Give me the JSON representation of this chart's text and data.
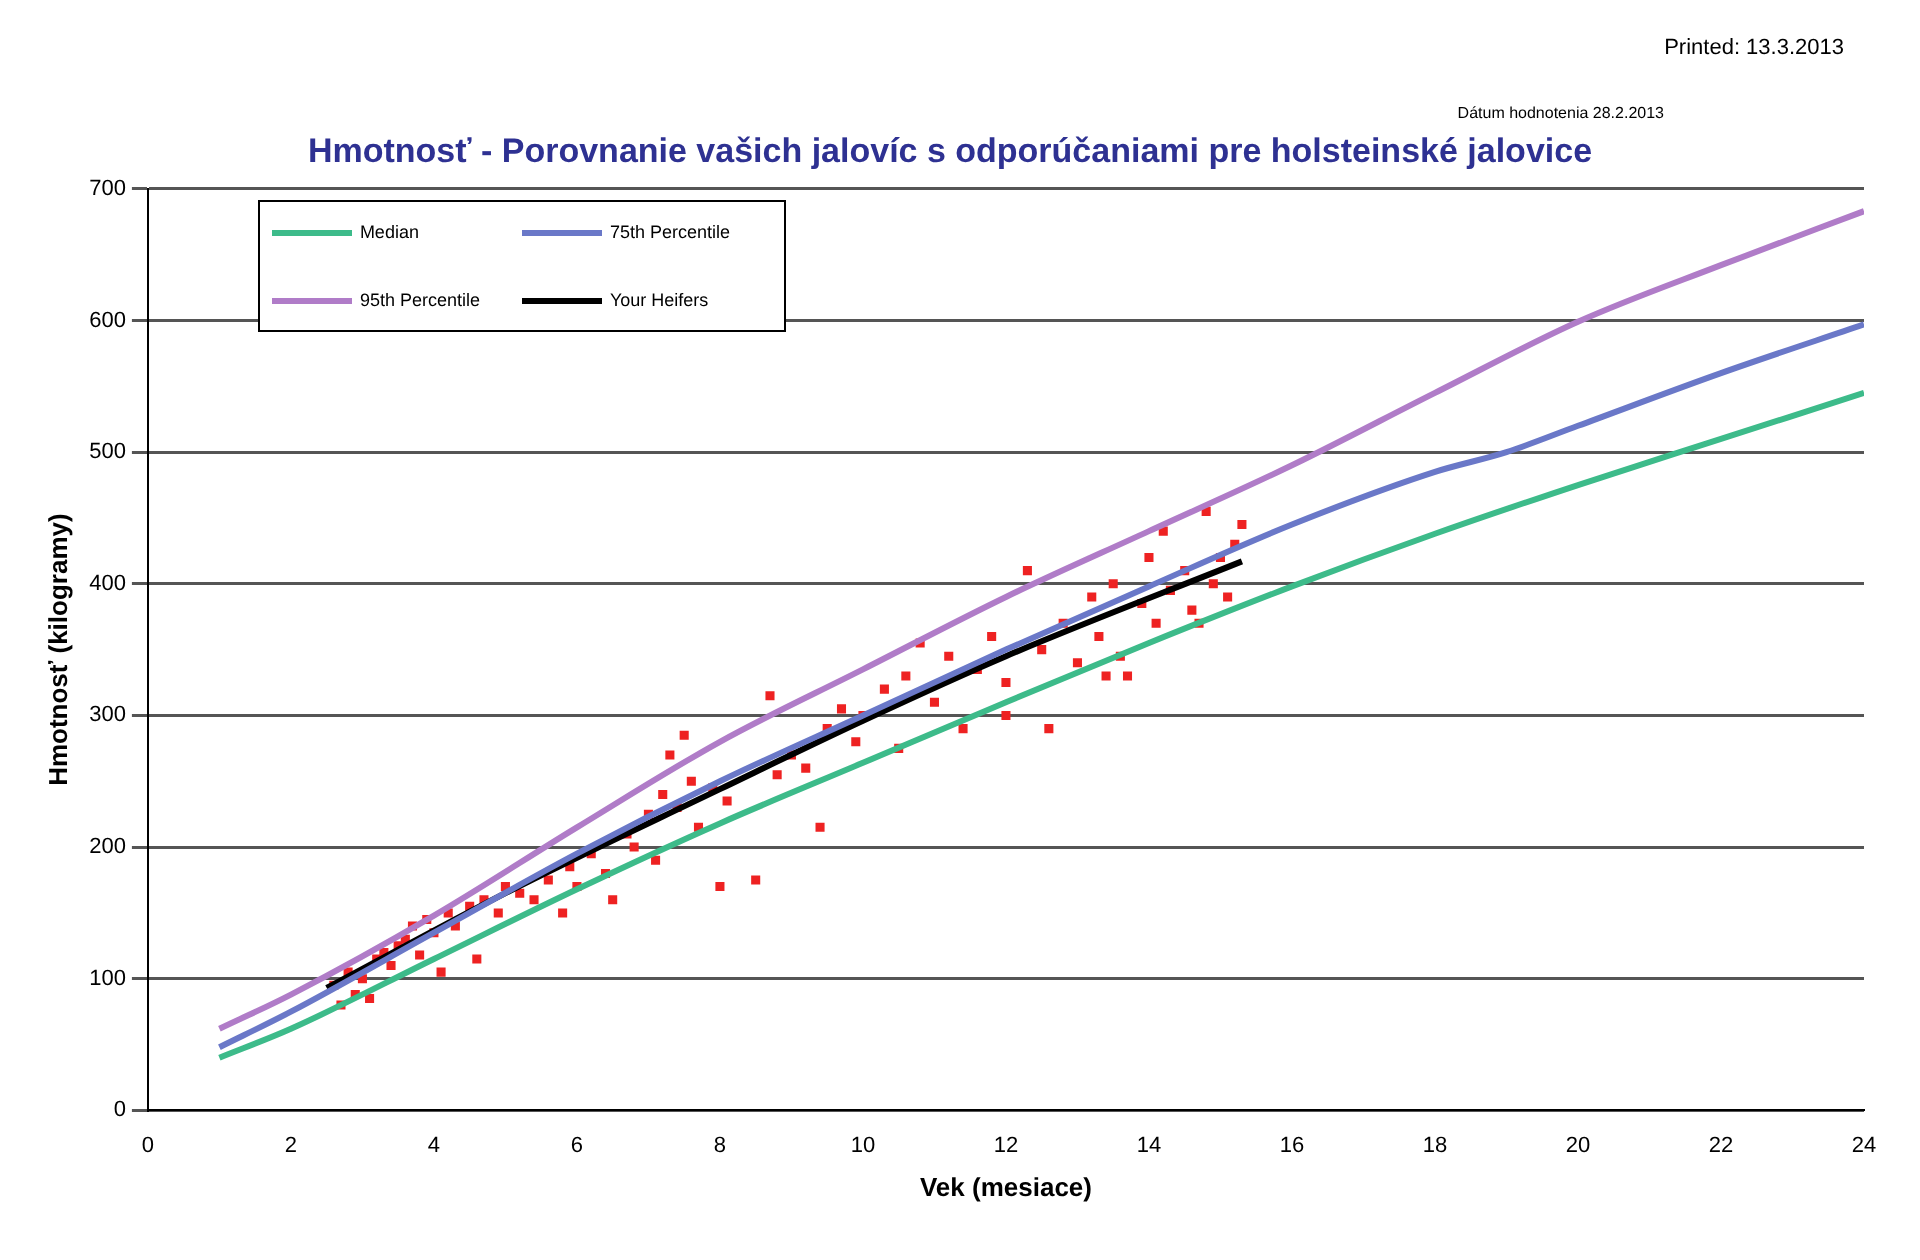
{
  "chart_data": {
    "type": "line",
    "title": "Hmotnosť - Porovnanie vašich jalovíc s odporúčaniami pre holsteinské jalovice",
    "xlabel": "Vek (mesiace)",
    "ylabel": "Hmotnosť (kilogramy)",
    "annotations": [
      "Printed: 13.3.2013",
      "Dátum hodnotenia 28.2.2013"
    ],
    "xlim": [
      0,
      24
    ],
    "xticks": [
      0,
      2,
      4,
      6,
      8,
      10,
      12,
      14,
      16,
      18,
      20,
      22,
      24
    ],
    "ylim": [
      0,
      700
    ],
    "yticks": [
      0,
      100,
      200,
      300,
      400,
      500,
      600,
      700
    ],
    "grid": "y",
    "legend": "top left",
    "line_style": "solid",
    "series": [
      {
        "name": "Median",
        "color": "#3dbb8a",
        "x": [
          1,
          2,
          4,
          6,
          8,
          10,
          12,
          14,
          16,
          18,
          20,
          22,
          24
        ],
        "values": [
          40,
          62,
          115,
          168,
          218,
          264,
          310,
          355,
          398,
          438,
          475,
          510,
          545
        ]
      },
      {
        "name": "75th Percentile",
        "color": "#6a78c8",
        "x": [
          1,
          2,
          4,
          6,
          8,
          10,
          12,
          14,
          16,
          18,
          19,
          20,
          22,
          24
        ],
        "values": [
          48,
          75,
          135,
          195,
          250,
          300,
          350,
          398,
          445,
          485,
          500,
          520,
          560,
          597
        ]
      },
      {
        "name": "95th Percentile",
        "color": "#b07cc8",
        "x": [
          1,
          2,
          4,
          6,
          8,
          10,
          12,
          14,
          16,
          18,
          20,
          22,
          24
        ],
        "values": [
          62,
          88,
          148,
          215,
          280,
          335,
          390,
          440,
          490,
          545,
          599,
          642,
          683
        ]
      },
      {
        "name": "Your Heifers",
        "color": "#000000",
        "x": [
          2.5,
          5,
          8,
          10,
          12,
          15.3
        ],
        "values": [
          93,
          165,
          244,
          296,
          345,
          417
        ]
      },
      {
        "type": "scatter",
        "marker": "square",
        "color": "#ee2222",
        "x": [
          2.6,
          2.7,
          2.8,
          2.9,
          3.0,
          3.1,
          3.2,
          3.3,
          3.4,
          3.5,
          3.6,
          3.7,
          3.8,
          3.9,
          4.0,
          4.1,
          4.2,
          4.3,
          4.5,
          4.6,
          4.7,
          4.9,
          5.0,
          5.2,
          5.4,
          5.6,
          5.8,
          5.9,
          6.0,
          6.2,
          6.4,
          6.5,
          6.7,
          6.8,
          7.0,
          7.1,
          7.2,
          7.3,
          7.4,
          7.5,
          7.6,
          7.7,
          7.9,
          8.0,
          8.1,
          8.5,
          8.7,
          8.8,
          9.0,
          9.2,
          9.4,
          9.5,
          9.7,
          9.9,
          10.0,
          10.3,
          10.5,
          10.6,
          10.8,
          11.0,
          11.2,
          11.4,
          11.6,
          11.8,
          12.0,
          12.0,
          12.3,
          12.5,
          12.6,
          12.8,
          13.0,
          13.2,
          13.3,
          13.4,
          13.5,
          13.6,
          13.7,
          13.9,
          14.0,
          14.1,
          14.2,
          14.3,
          14.5,
          14.6,
          14.7,
          14.8,
          14.9,
          15.0,
          15.1,
          15.2,
          15.3
        ],
        "values": [
          95,
          80,
          105,
          88,
          100,
          85,
          115,
          120,
          110,
          125,
          130,
          140,
          118,
          145,
          135,
          105,
          150,
          140,
          155,
          115,
          160,
          150,
          170,
          165,
          160,
          175,
          150,
          185,
          170,
          195,
          180,
          160,
          210,
          200,
          225,
          190,
          240,
          270,
          230,
          285,
          250,
          215,
          245,
          170,
          235,
          175,
          315,
          255,
          270,
          260,
          215,
          290,
          305,
          280,
          300,
          320,
          275,
          330,
          355,
          310,
          345,
          290,
          335,
          360,
          325,
          300,
          410,
          350,
          290,
          370,
          340,
          390,
          360,
          330,
          400,
          345,
          330,
          385,
          420,
          370,
          440,
          395,
          410,
          380,
          370,
          455,
          400,
          420,
          390,
          430,
          445
        ]
      }
    ]
  }
}
